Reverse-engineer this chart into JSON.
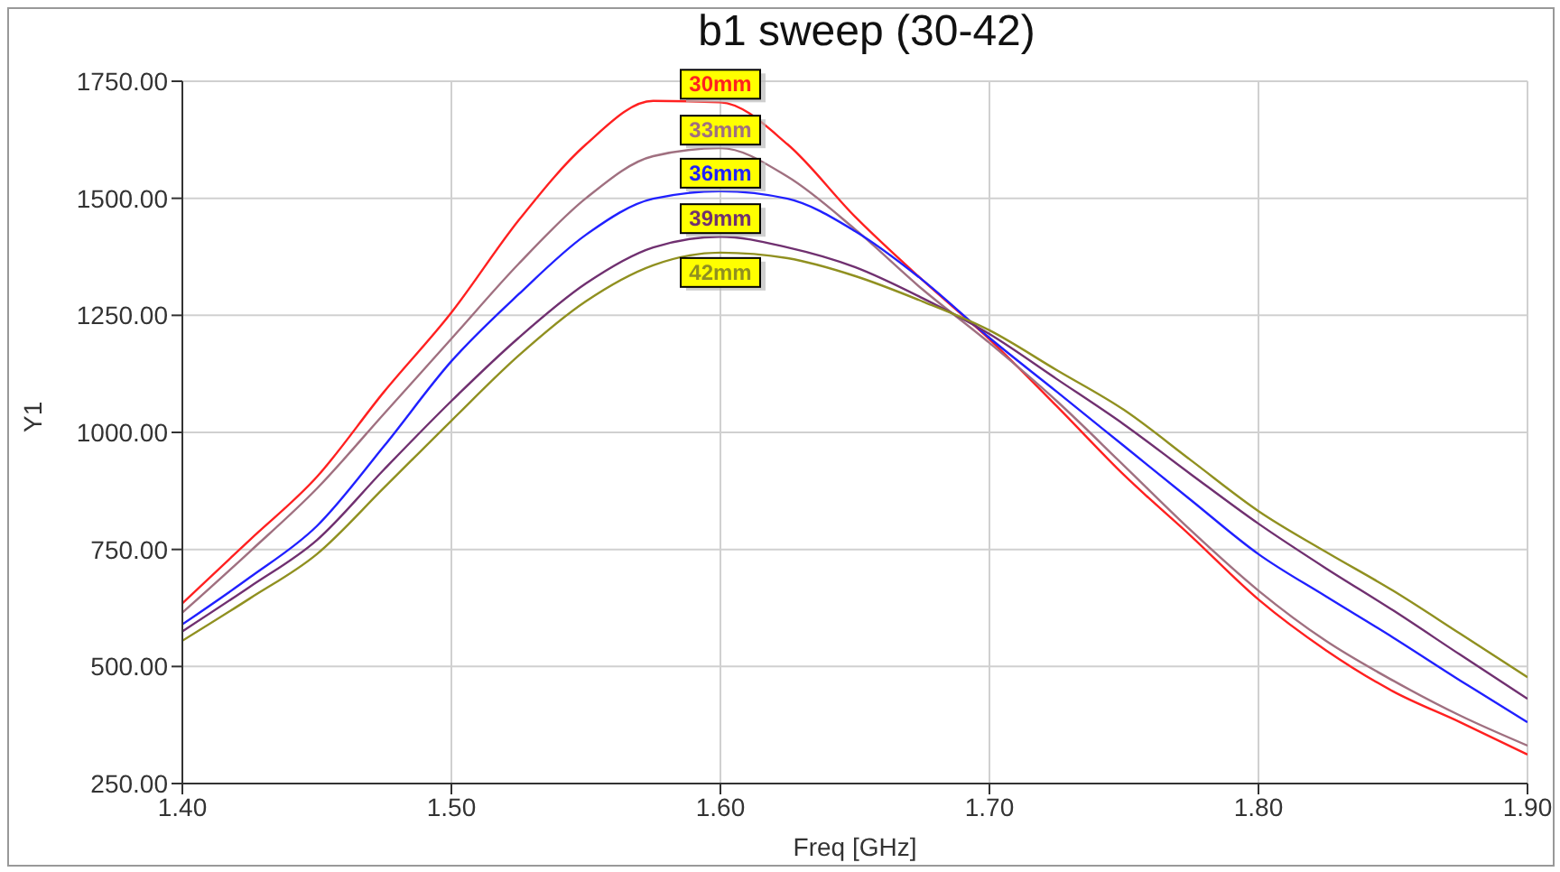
{
  "chart_data": {
    "type": "line",
    "title": "b1 sweep (30-42)",
    "xlabel": "Freq [GHz]",
    "ylabel": "Y1",
    "x": [
      1.4,
      1.425,
      1.45,
      1.475,
      1.5,
      1.525,
      1.55,
      1.575,
      1.6,
      1.625,
      1.65,
      1.675,
      1.7,
      1.725,
      1.75,
      1.775,
      1.8,
      1.825,
      1.85,
      1.875,
      1.9
    ],
    "series": [
      {
        "name": "30mm",
        "color": "#ff2020",
        "values": [
          635,
          770,
          905,
          1087,
          1256,
          1453,
          1615,
          1708,
          1705,
          1615,
          1461,
          1326,
          1199,
          1056,
          909,
          778,
          643,
          535,
          447,
          381,
          312
        ]
      },
      {
        "name": "33mm",
        "color": "#a07080",
        "values": [
          615,
          745,
          880,
          1040,
          1200,
          1360,
          1500,
          1590,
          1607,
          1546,
          1434,
          1306,
          1191,
          1067,
          929,
          790,
          662,
          555,
          470,
          395,
          331
        ]
      },
      {
        "name": "36mm",
        "color": "#2020ff",
        "values": [
          590,
          690,
          800,
          971,
          1152,
          1295,
          1422,
          1499,
          1515,
          1499,
          1430,
          1326,
          1202,
          1087,
          971,
          855,
          740,
          650,
          562,
          470,
          381
        ]
      },
      {
        "name": "39mm",
        "color": "#703070",
        "values": [
          575,
          670,
          770,
          921,
          1067,
          1202,
          1318,
          1395,
          1418,
          1395,
          1353,
          1287,
          1210,
          1114,
          1017,
          910,
          805,
          710,
          620,
          525,
          431
        ]
      },
      {
        "name": "42mm",
        "color": "#909020",
        "values": [
          555,
          645,
          740,
          882,
          1025,
          1164,
          1280,
          1357,
          1384,
          1372,
          1334,
          1280,
          1218,
          1133,
          1048,
          940,
          832,
          745,
          662,
          570,
          477
        ]
      }
    ],
    "xlim": [
      1.4,
      1.9
    ],
    "xticks": [
      {
        "value": 1.4,
        "label": "1.40"
      },
      {
        "value": 1.5,
        "label": "1.50"
      },
      {
        "value": 1.6,
        "label": "1.60"
      },
      {
        "value": 1.7,
        "label": "1.70"
      },
      {
        "value": 1.8,
        "label": "1.80"
      },
      {
        "value": 1.9,
        "label": "1.90"
      }
    ],
    "ylim": [
      250,
      1750
    ],
    "yticks": [
      {
        "value": 250,
        "label": "250.00"
      },
      {
        "value": 500,
        "label": "500.00"
      },
      {
        "value": 750,
        "label": "750.00"
      },
      {
        "value": 1000,
        "label": "1000.00"
      },
      {
        "value": 1250,
        "label": "1250.00"
      },
      {
        "value": 1500,
        "label": "1500.00"
      },
      {
        "value": 1750,
        "label": "1750.00"
      }
    ],
    "grid": true,
    "legend": false,
    "marker": "none",
    "line_style": "solid"
  }
}
